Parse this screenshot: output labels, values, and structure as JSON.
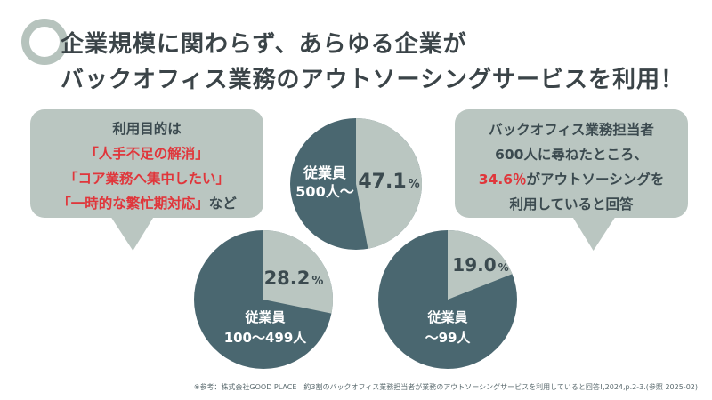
{
  "title_line1": "企業規模に関わらず、あらゆる企業が",
  "title_line2": "バックオフィス業務のアウトソーシングサービスを利用！",
  "left_bubble": {
    "line1": "利用目的は",
    "line2": "「人手不足の解消」",
    "line3": "「コア業務へ集中したい」",
    "line4_highlight": "「一時的な繁忙期対応」",
    "line4_suffix": "など"
  },
  "right_bubble": {
    "line1": "バックオフィス業務担当者",
    "line2": "600人に尋ねたところ、",
    "line3_highlight": "34.6％",
    "line3_suffix": "がアウトソーシングを",
    "line4": "利用していると回答"
  },
  "colors": {
    "dark": "#4a6770",
    "light": "#bac6c1",
    "red": "#e0363b"
  },
  "chart_data": [
    {
      "type": "pie",
      "label_line1": "従業員",
      "label_line2": "500人〜",
      "value": 47.1,
      "value_text": "47.1",
      "unit": "%"
    },
    {
      "type": "pie",
      "label_line1": "従業員",
      "label_line2": "100〜499人",
      "value": 28.2,
      "value_text": "28.2",
      "unit": "%"
    },
    {
      "type": "pie",
      "label_line1": "従業員",
      "label_line2": "〜99人",
      "value": 19.0,
      "value_text": "19.0",
      "unit": "%"
    }
  ],
  "source": "※参考：株式会社GOOD PLACE　約3割のバックオフィス業務担当者が業務のアウトソーシングサービスを利用していると回答!,2024,p.2-3.(参照 2025-02)"
}
